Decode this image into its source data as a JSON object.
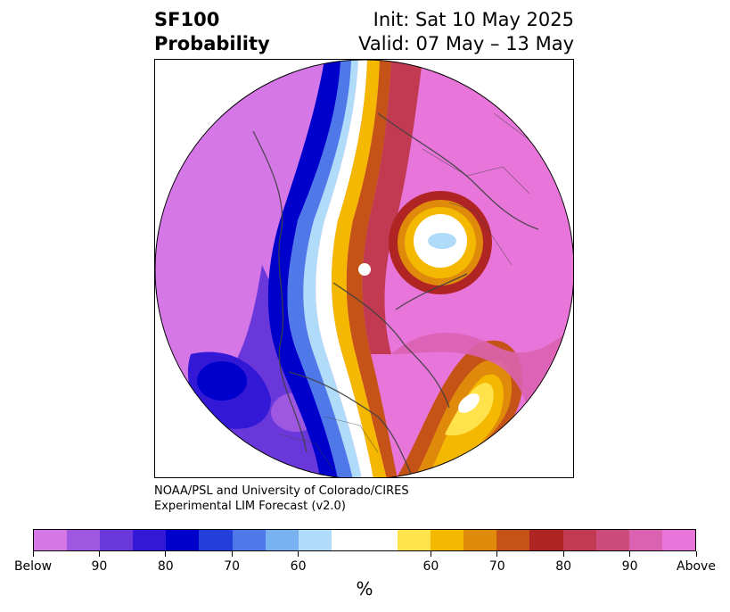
{
  "header": {
    "variable": "SF100",
    "product": "Probability",
    "init": "Init: Sat 10 May 2025",
    "valid": "Valid: 07 May – 13 May"
  },
  "credit": {
    "line1": "NOAA/PSL and University of Colorado/CIRES",
    "line2": "Experimental LIM Forecast (v2.0)"
  },
  "colorbar": {
    "colors": [
      "#d677e8",
      "#9d57e0",
      "#6a38da",
      "#3318d6",
      "#0000cd",
      "#233fdb",
      "#4f78e8",
      "#78b2f0",
      "#b0dcfa",
      "#ffffff",
      "#ffffff",
      "#ffe24c",
      "#f5b800",
      "#e08a0c",
      "#c55216",
      "#b02424",
      "#c23a52",
      "#cc4d7c",
      "#da62b0",
      "#e876da"
    ],
    "labels": [
      "Below",
      "90",
      "80",
      "70",
      "60",
      "60",
      "70",
      "80",
      "90",
      "Above"
    ],
    "unit": "%"
  }
}
